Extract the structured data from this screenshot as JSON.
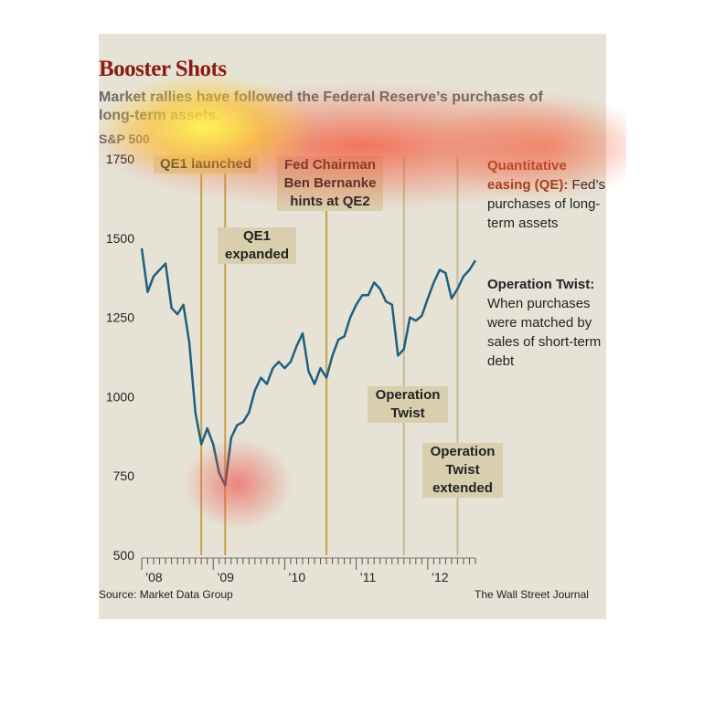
{
  "chart_data": {
    "type": "line",
    "title": "Booster Shots",
    "subtitle": "Market rallies have followed the Federal Reserve’s purchases of long-term assets.",
    "ylabel": "S&P 500",
    "ylim": [
      500,
      1750
    ],
    "yticks": [
      "1750",
      "1500",
      "1250",
      "1000",
      "750",
      "500"
    ],
    "xticks": [
      "’08",
      "’09",
      "’10",
      "’11",
      "’12"
    ],
    "xlim": [
      "2008-01",
      "2012-09"
    ],
    "grid": false,
    "series": [
      {
        "color": "#1f5f7e",
        "x": [
          "2008-01",
          "2008-02",
          "2008-03",
          "2008-04",
          "2008-05",
          "2008-06",
          "2008-07",
          "2008-08",
          "2008-09",
          "2008-10",
          "2008-11",
          "2008-12",
          "2009-01",
          "2009-02",
          "2009-03",
          "2009-04",
          "2009-05",
          "2009-06",
          "2009-07",
          "2009-08",
          "2009-09",
          "2009-10",
          "2009-11",
          "2009-12",
          "2010-01",
          "2010-02",
          "2010-03",
          "2010-04",
          "2010-05",
          "2010-06",
          "2010-07",
          "2010-08",
          "2010-09",
          "2010-10",
          "2010-11",
          "2010-12",
          "2011-01",
          "2011-02",
          "2011-03",
          "2011-04",
          "2011-05",
          "2011-06",
          "2011-07",
          "2011-08",
          "2011-09",
          "2011-10",
          "2011-11",
          "2011-12",
          "2012-01",
          "2012-02",
          "2012-03",
          "2012-04",
          "2012-05",
          "2012-06",
          "2012-07",
          "2012-08",
          "2012-09"
        ],
        "values": [
          1468,
          1330,
          1380,
          1400,
          1420,
          1280,
          1260,
          1290,
          1170,
          950,
          850,
          900,
          850,
          760,
          720,
          870,
          910,
          920,
          950,
          1020,
          1060,
          1040,
          1090,
          1110,
          1090,
          1110,
          1160,
          1200,
          1080,
          1040,
          1090,
          1060,
          1130,
          1180,
          1190,
          1250,
          1290,
          1320,
          1320,
          1360,
          1340,
          1300,
          1290,
          1130,
          1150,
          1250,
          1240,
          1255,
          1310,
          1360,
          1400,
          1390,
          1310,
          1340,
          1380,
          1400,
          1430
        ]
      }
    ],
    "events": [
      {
        "date": "2008-11",
        "label": "QE1 launched"
      },
      {
        "date": "2009-03",
        "label": "QE1 expanded"
      },
      {
        "date": "2010-08",
        "label": "Fed Chairman Ben Bernanke hints at QE2"
      },
      {
        "date": "2011-09",
        "label": "Operation Twist"
      },
      {
        "date": "2012-06",
        "label": "Operation Twist extended"
      }
    ],
    "colors": {
      "qe": "#c8a04a",
      "twist": "#c8b890",
      "line": "#1f5f7e",
      "title": "#8b1a14"
    }
  },
  "legend": {
    "qe_title": "Quantitative easing (QE):",
    "qe_desc": "Fed’s purchases of long-term assets",
    "twist_title": "Operation Twist:",
    "twist_desc": "When purchases were matched by sales of short-term debt"
  },
  "footer": {
    "source": "Source: Market Data Group",
    "credit": "The Wall Street Journal"
  }
}
